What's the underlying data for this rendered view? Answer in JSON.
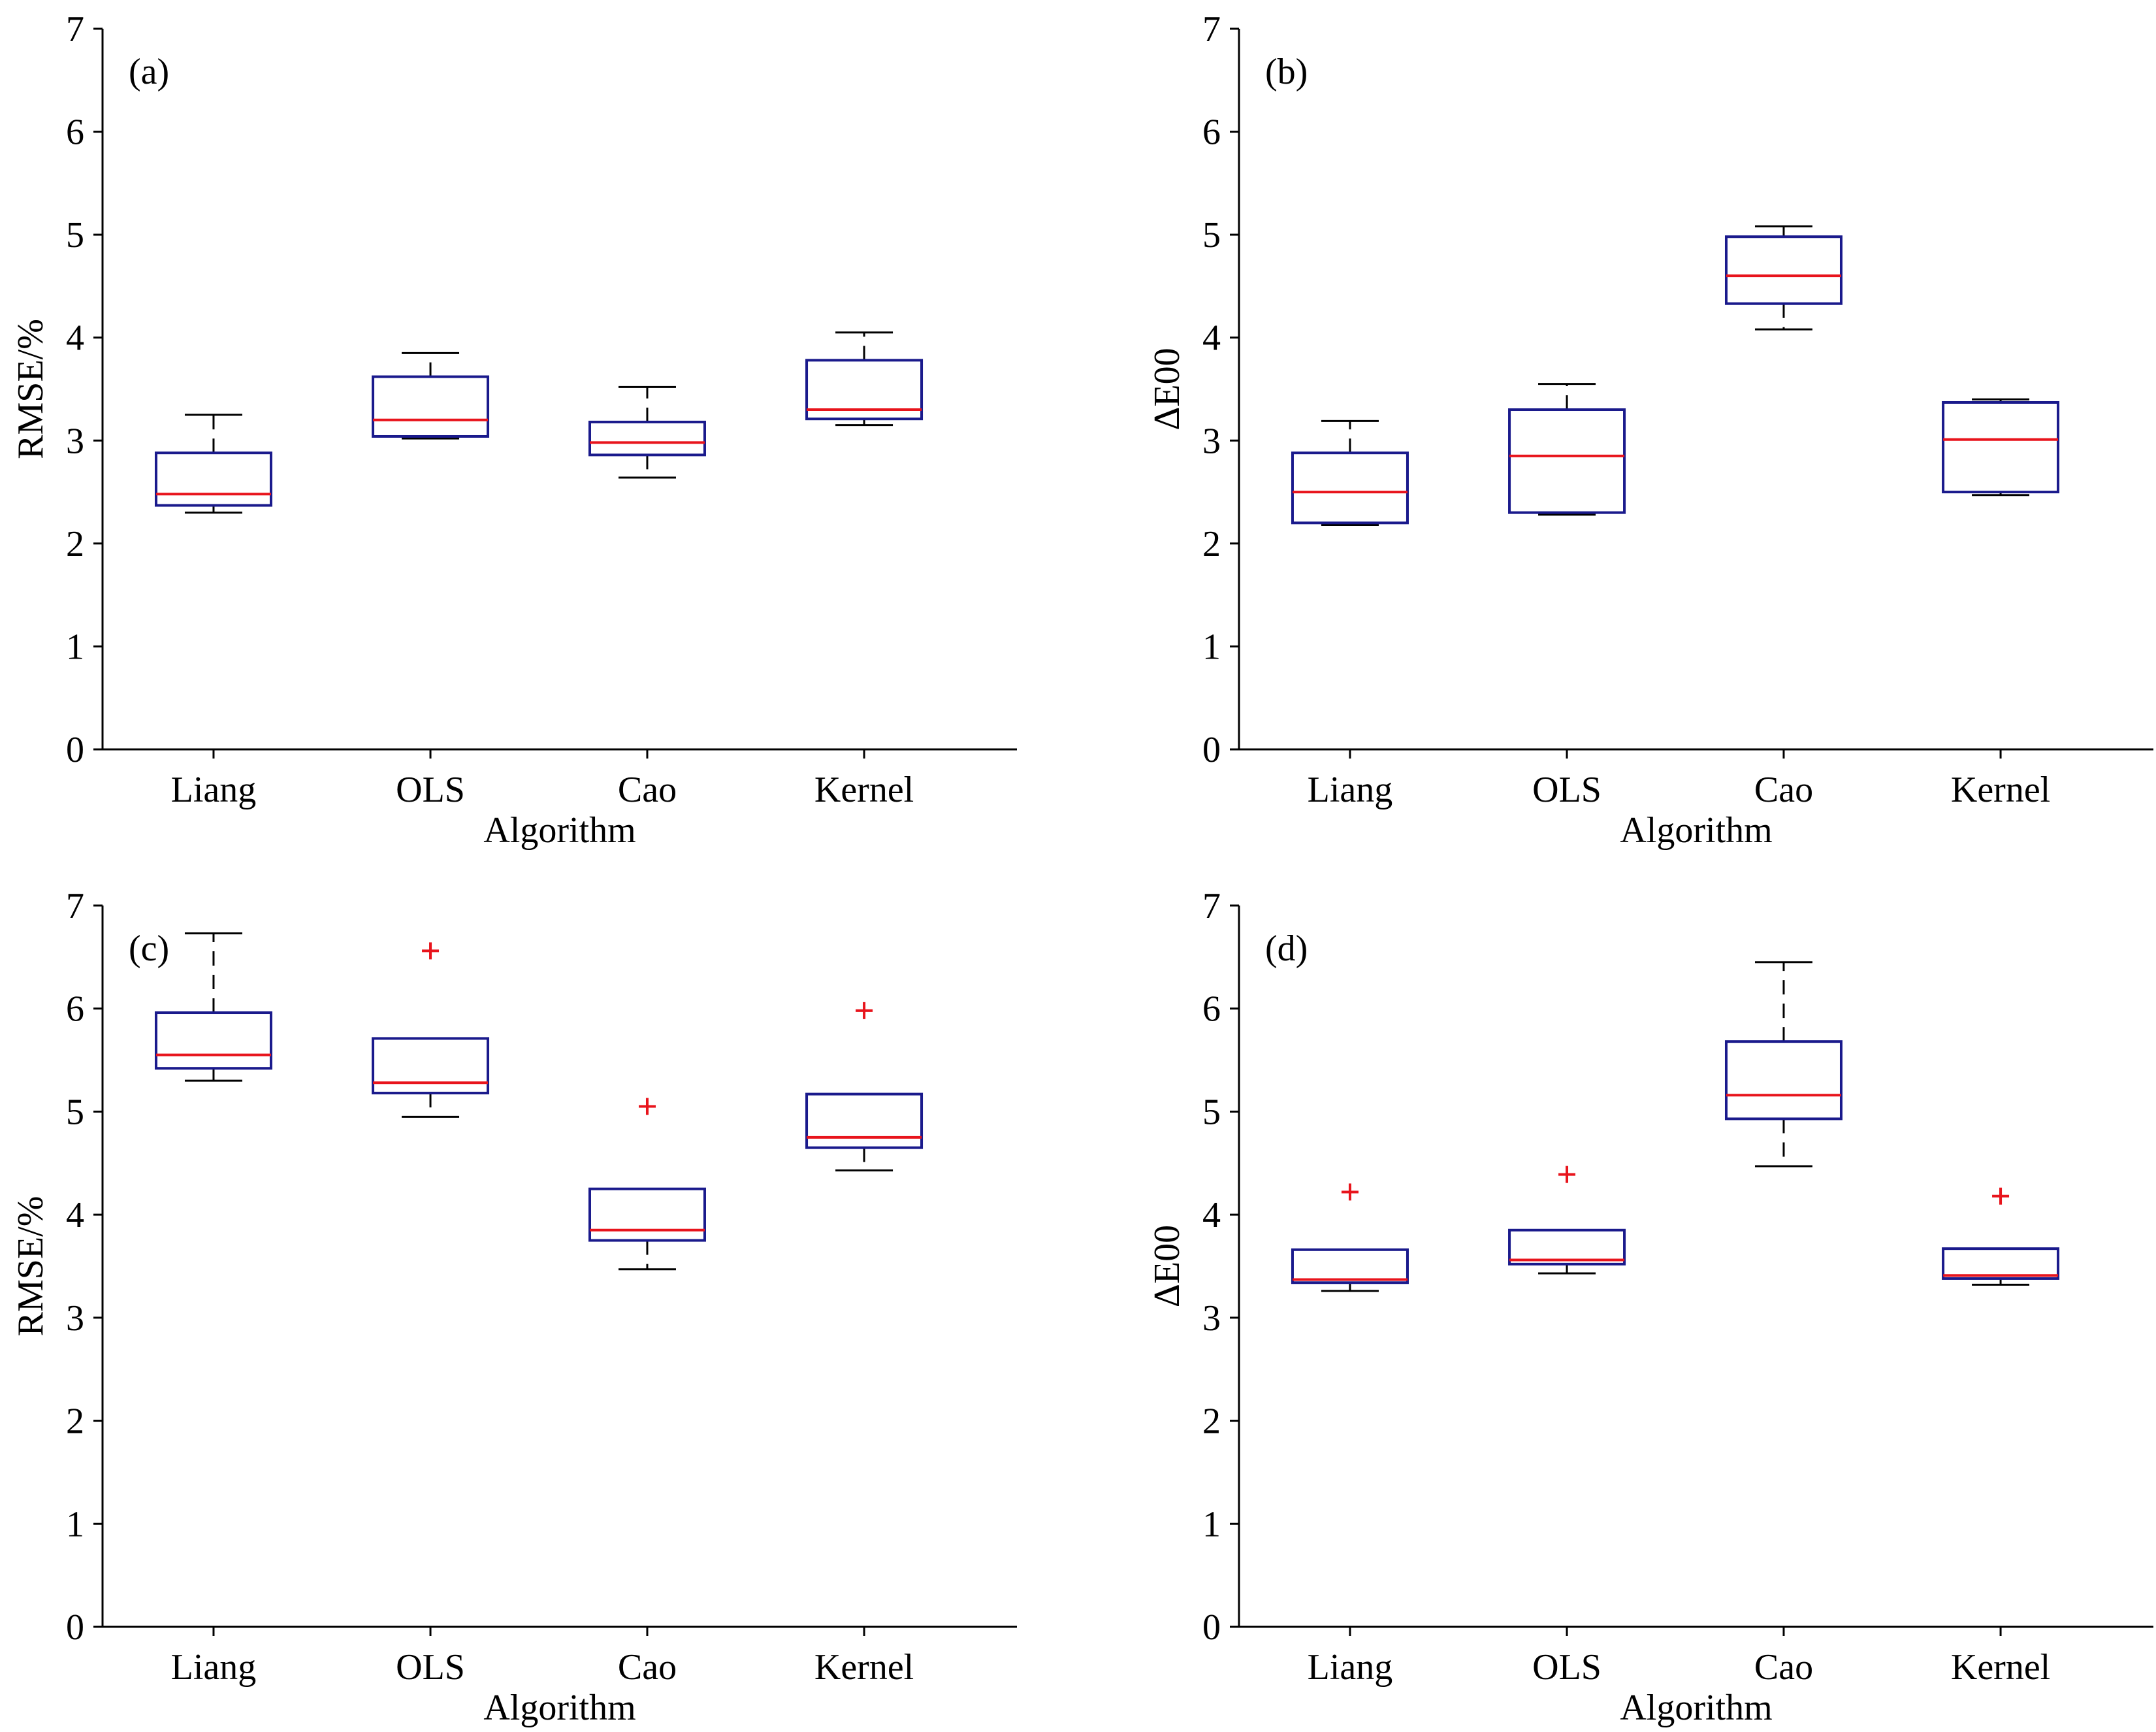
{
  "chart_data": [
    {
      "panel_label": "(a)",
      "type": "box",
      "xlabel": "Algorithm",
      "ylabel": "RMSE/%",
      "ylim": [
        0,
        7
      ],
      "yticks": [
        "0",
        "1",
        "2",
        "3",
        "4",
        "5",
        "6",
        "7"
      ],
      "categories": [
        "Liang",
        "OLS",
        "Cao",
        "Kernel"
      ],
      "boxes": [
        {
          "min": 2.3,
          "q1": 2.37,
          "median": 2.48,
          "q3": 2.88,
          "max": 3.25,
          "outliers": []
        },
        {
          "min": 3.02,
          "q1": 3.04,
          "median": 3.2,
          "q3": 3.62,
          "max": 3.85,
          "outliers": []
        },
        {
          "min": 2.64,
          "q1": 2.86,
          "median": 2.98,
          "q3": 3.18,
          "max": 3.52,
          "outliers": []
        },
        {
          "min": 3.15,
          "q1": 3.21,
          "median": 3.3,
          "q3": 3.78,
          "max": 4.05,
          "outliers": []
        }
      ]
    },
    {
      "panel_label": "(b)",
      "type": "box",
      "xlabel": "Algorithm",
      "ylabel": "ΔE00",
      "ylim": [
        0,
        7
      ],
      "yticks": [
        "0",
        "1",
        "2",
        "3",
        "4",
        "5",
        "6",
        "7"
      ],
      "categories": [
        "Liang",
        "OLS",
        "Cao",
        "Kernel"
      ],
      "boxes": [
        {
          "min": 2.18,
          "q1": 2.2,
          "median": 2.5,
          "q3": 2.88,
          "max": 3.19,
          "outliers": []
        },
        {
          "min": 2.28,
          "q1": 2.3,
          "median": 2.85,
          "q3": 3.3,
          "max": 3.55,
          "outliers": []
        },
        {
          "min": 4.08,
          "q1": 4.33,
          "median": 4.6,
          "q3": 4.98,
          "max": 5.08,
          "outliers": []
        },
        {
          "min": 2.47,
          "q1": 2.5,
          "median": 3.01,
          "q3": 3.37,
          "max": 3.4,
          "outliers": []
        }
      ]
    },
    {
      "panel_label": "(c)",
      "type": "box",
      "xlabel": "Algorithm",
      "ylabel": "RMSE/%",
      "ylim": [
        0,
        7
      ],
      "yticks": [
        "0",
        "1",
        "2",
        "3",
        "4",
        "5",
        "6",
        "7"
      ],
      "categories": [
        "Liang",
        "OLS",
        "Cao",
        "Kernel"
      ],
      "boxes": [
        {
          "min": 5.3,
          "q1": 5.42,
          "median": 5.55,
          "q3": 5.96,
          "max": 6.73,
          "outliers": []
        },
        {
          "min": 4.95,
          "q1": 5.18,
          "median": 5.28,
          "q3": 5.71,
          "max": 5.71,
          "outliers": [
            6.56
          ]
        },
        {
          "min": 3.47,
          "q1": 3.75,
          "median": 3.85,
          "q3": 4.25,
          "max": 4.25,
          "outliers": [
            5.05
          ]
        },
        {
          "min": 4.43,
          "q1": 4.65,
          "median": 4.75,
          "q3": 5.17,
          "max": 5.17,
          "outliers": [
            5.98
          ]
        }
      ]
    },
    {
      "panel_label": "(d)",
      "type": "box",
      "xlabel": "Algorithm",
      "ylabel": "ΔE00",
      "ylim": [
        0,
        7
      ],
      "yticks": [
        "0",
        "1",
        "2",
        "3",
        "4",
        "5",
        "6",
        "7"
      ],
      "categories": [
        "Liang",
        "OLS",
        "Cao",
        "Kernel"
      ],
      "boxes": [
        {
          "min": 3.26,
          "q1": 3.34,
          "median": 3.37,
          "q3": 3.66,
          "max": 3.66,
          "outliers": [
            4.22
          ]
        },
        {
          "min": 3.43,
          "q1": 3.52,
          "median": 3.56,
          "q3": 3.85,
          "max": 3.85,
          "outliers": [
            4.39
          ]
        },
        {
          "min": 4.47,
          "q1": 4.93,
          "median": 5.16,
          "q3": 5.68,
          "max": 6.45,
          "outliers": []
        },
        {
          "min": 3.32,
          "q1": 3.38,
          "median": 3.41,
          "q3": 3.67,
          "max": 3.67,
          "outliers": [
            4.18
          ]
        }
      ]
    }
  ],
  "colors": {
    "box": "#1a1a8c",
    "median": "#e8141c",
    "outlier": "#e8141c",
    "whisker": "#000000",
    "axis": "#000000"
  }
}
